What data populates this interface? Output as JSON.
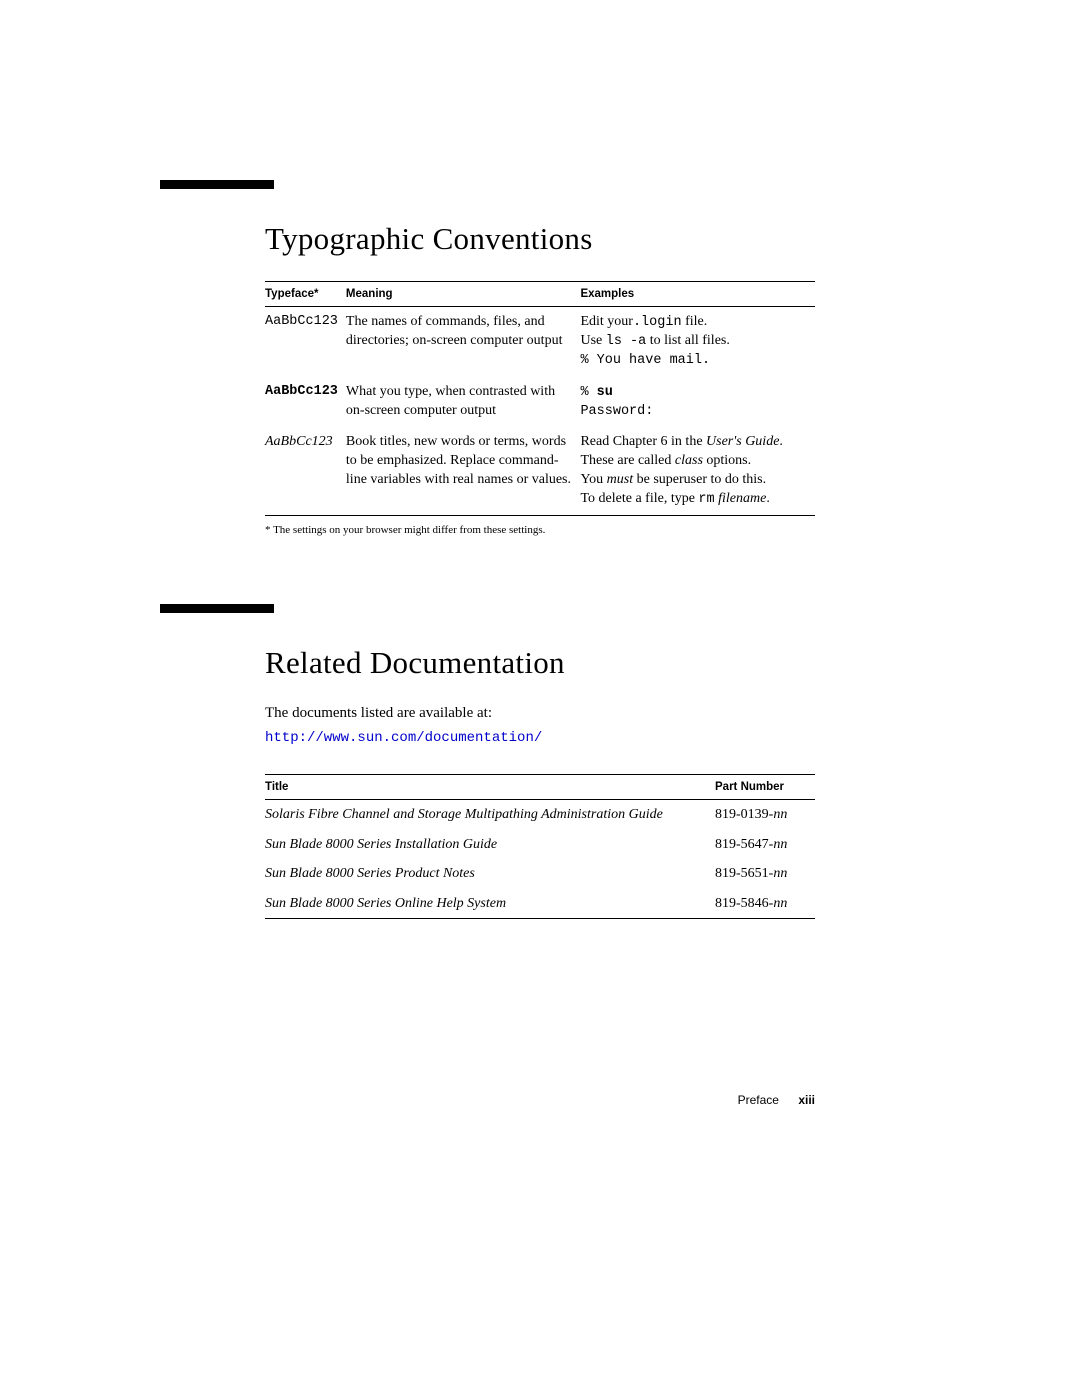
{
  "section1": {
    "title": "Typographic Conventions",
    "headers": {
      "c1": "Typeface",
      "c1_sup": "*",
      "c2": "Meaning",
      "c3": "Examples"
    },
    "rows": [
      {
        "typeface": "AaBbCc123",
        "meaning": "The names of commands, files, and directories; on-screen computer output",
        "ex_line1_a": "Edit your",
        "ex_line1_b": ".login",
        "ex_line1_c": " file.",
        "ex_line2_a": "Use ",
        "ex_line2_b": " ls -a",
        "ex_line2_c": " to list all files.",
        "ex_line3": "% You have mail."
      },
      {
        "typeface": "AaBbCc123",
        "meaning": "What you type, when contrasted with on-screen computer output",
        "ex_line1_a": "% ",
        "ex_line1_b": "su",
        "ex_line2": "Password:"
      },
      {
        "typeface": "AaBbCc123",
        "meaning": "Book titles, new words or terms, words to be emphasized. Replace command-line variables with real names or values.",
        "ex_line1_a": "Read Chapter 6 in the ",
        "ex_line1_b": "User's Guide",
        "ex_line1_c": ".",
        "ex_line2_a": "These are called ",
        "ex_line2_b": "class",
        "ex_line2_c": " options.",
        "ex_line3_a": "You ",
        "ex_line3_b": "must",
        "ex_line3_c": " be superuser to do this.",
        "ex_line4_a": "To delete a file, type ",
        "ex_line4_b": "rm",
        "ex_line4_c": " ",
        "ex_line4_d": "filename",
        "ex_line4_e": "."
      }
    ],
    "footnote_marker": "*",
    "footnote": "The settings on your browser might differ from these settings."
  },
  "section2": {
    "title": "Related Documentation",
    "intro": "The documents listed are available at:",
    "url": "http://www.sun.com/documentation/",
    "headers": {
      "c1": "Title",
      "c2": "Part Number"
    },
    "docs": [
      {
        "title": "Solaris Fibre Channel and Storage Multipathing Administration Guide",
        "part_a": "819-0139-",
        "part_b": "nn"
      },
      {
        "title": "Sun Blade 8000 Series Installation Guide",
        "part_a": "819-5647-",
        "part_b": "nn"
      },
      {
        "title": "Sun Blade 8000 Series Product Notes",
        "part_a": "819-5651-",
        "part_b": "nn"
      },
      {
        "title": "Sun Blade 8000 Series Online Help System",
        "part_a": "819-5846-",
        "part_b": "nn"
      }
    ]
  },
  "footer": {
    "section": "Preface",
    "page": "xiii"
  },
  "colors": {
    "text": "#000000",
    "link": "#0000cc",
    "bg": "#ffffff"
  }
}
